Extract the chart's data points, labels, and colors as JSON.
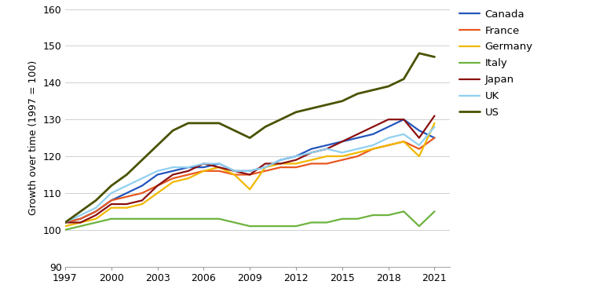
{
  "title": "",
  "ylabel": "Growth over time (1997 = 100)",
  "xlabel": "",
  "ylim": [
    90,
    160
  ],
  "xlim": [
    1997,
    2022
  ],
  "yticks": [
    90,
    100,
    110,
    120,
    130,
    140,
    150,
    160
  ],
  "xticks": [
    1997,
    2000,
    2003,
    2006,
    2009,
    2012,
    2015,
    2018,
    2021
  ],
  "series": {
    "Canada": {
      "color": "#2255bb",
      "years": [
        1997,
        1998,
        1999,
        2000,
        2001,
        2002,
        2003,
        2004,
        2005,
        2006,
        2007,
        2008,
        2009,
        2010,
        2011,
        2012,
        2013,
        2014,
        2015,
        2016,
        2017,
        2018,
        2019,
        2020,
        2021
      ],
      "values": [
        102,
        103,
        105,
        108,
        110,
        112,
        115,
        116,
        117,
        117,
        118,
        116,
        116,
        117,
        119,
        120,
        122,
        123,
        124,
        125,
        126,
        128,
        130,
        127,
        125
      ]
    },
    "France": {
      "color": "#e85820",
      "years": [
        1997,
        1998,
        1999,
        2000,
        2001,
        2002,
        2003,
        2004,
        2005,
        2006,
        2007,
        2008,
        2009,
        2010,
        2011,
        2012,
        2013,
        2014,
        2015,
        2016,
        2017,
        2018,
        2019,
        2020,
        2021
      ],
      "values": [
        102,
        103,
        105,
        108,
        109,
        110,
        112,
        114,
        115,
        116,
        116,
        115,
        115,
        116,
        117,
        117,
        118,
        118,
        119,
        120,
        122,
        123,
        124,
        122,
        125
      ]
    },
    "Germany": {
      "color": "#f0b800",
      "years": [
        1997,
        1998,
        1999,
        2000,
        2001,
        2002,
        2003,
        2004,
        2005,
        2006,
        2007,
        2008,
        2009,
        2010,
        2011,
        2012,
        2013,
        2014,
        2015,
        2016,
        2017,
        2018,
        2019,
        2020,
        2021
      ],
      "values": [
        101,
        102,
        103,
        106,
        106,
        107,
        110,
        113,
        114,
        116,
        117,
        115,
        111,
        117,
        118,
        118,
        119,
        120,
        120,
        121,
        122,
        123,
        124,
        120,
        129
      ]
    },
    "Italy": {
      "color": "#6db33f",
      "years": [
        1997,
        1998,
        1999,
        2000,
        2001,
        2002,
        2003,
        2004,
        2005,
        2006,
        2007,
        2008,
        2009,
        2010,
        2011,
        2012,
        2013,
        2014,
        2015,
        2016,
        2017,
        2018,
        2019,
        2020,
        2021
      ],
      "values": [
        100,
        101,
        102,
        103,
        103,
        103,
        103,
        103,
        103,
        103,
        103,
        102,
        101,
        101,
        101,
        101,
        102,
        102,
        103,
        103,
        104,
        104,
        105,
        101,
        105
      ]
    },
    "Japan": {
      "color": "#8b1010",
      "years": [
        1997,
        1998,
        1999,
        2000,
        2001,
        2002,
        2003,
        2004,
        2005,
        2006,
        2007,
        2008,
        2009,
        2010,
        2011,
        2012,
        2013,
        2014,
        2015,
        2016,
        2017,
        2018,
        2019,
        2020,
        2021
      ],
      "values": [
        102,
        102,
        104,
        107,
        107,
        108,
        112,
        115,
        116,
        118,
        117,
        116,
        115,
        118,
        118,
        119,
        121,
        122,
        124,
        126,
        128,
        130,
        130,
        125,
        131
      ]
    },
    "UK": {
      "color": "#90d0f0",
      "years": [
        1997,
        1998,
        1999,
        2000,
        2001,
        2002,
        2003,
        2004,
        2005,
        2006,
        2007,
        2008,
        2009,
        2010,
        2011,
        2012,
        2013,
        2014,
        2015,
        2016,
        2017,
        2018,
        2019,
        2020,
        2021
      ],
      "values": [
        102,
        104,
        106,
        110,
        112,
        114,
        116,
        117,
        117,
        118,
        118,
        116,
        116,
        117,
        119,
        120,
        121,
        122,
        121,
        122,
        123,
        125,
        126,
        123,
        128
      ]
    },
    "US": {
      "color": "#4a5200",
      "years": [
        1997,
        1998,
        1999,
        2000,
        2001,
        2002,
        2003,
        2004,
        2005,
        2006,
        2007,
        2008,
        2009,
        2010,
        2011,
        2012,
        2013,
        2014,
        2015,
        2016,
        2017,
        2018,
        2019,
        2020,
        2021
      ],
      "values": [
        102,
        105,
        108,
        112,
        115,
        119,
        123,
        127,
        129,
        129,
        129,
        127,
        125,
        128,
        130,
        132,
        133,
        134,
        135,
        137,
        138,
        139,
        141,
        148,
        147
      ]
    }
  },
  "background_color": "#ffffff",
  "grid_color": "#d0d0d0",
  "figsize": [
    7.54,
    3.86
  ],
  "dpi": 100
}
